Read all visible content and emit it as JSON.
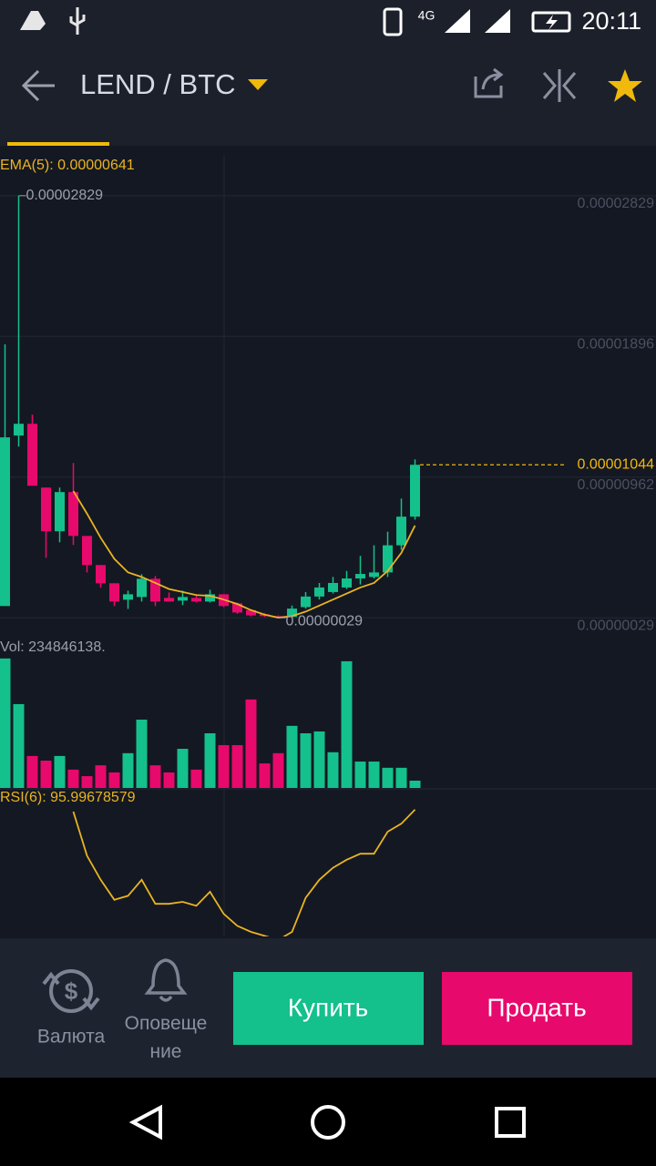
{
  "status_bar": {
    "network": "4G",
    "time": "20:11"
  },
  "header": {
    "title": "LEND / BTC"
  },
  "chart_data": [
    {
      "type": "candlestick",
      "ema": {
        "name": "EMA(5): 0.00000641",
        "color": "#e9b422",
        "values": [
          null,
          null,
          null,
          null,
          null,
          8.7e-06,
          7.2e-06,
          5.6e-06,
          4.2e-06,
          3.3e-06,
          3e-06,
          2.6e-06,
          2.2e-06,
          2e-06,
          1.8e-06,
          1.75e-06,
          1.5e-06,
          1.2e-06,
          8e-07,
          5e-07,
          3e-07,
          4e-07,
          7e-07,
          1.1e-06,
          1.5e-06,
          1.9e-06,
          2.3e-06,
          2.6e-06,
          3.4e-06,
          4.6e-06,
          6.41e-06
        ]
      },
      "open": [
        1.07e-06,
        1.238e-05,
        1.316e-05,
        8.93e-06,
        6.03e-06,
        8.63e-06,
        5.72e-06,
        3.79e-06,
        2.58e-06,
        1.49e-06,
        1.67e-06,
        2.88e-06,
        1.61e-06,
        1.43e-06,
        1.61e-06,
        1.37e-06,
        1.85e-06,
        1.25e-06,
        8e-07,
        5.2e-07,
        4e-07,
        3.5e-07,
        1e-06,
        1.7e-06,
        2e-06,
        2.3e-06,
        2.9e-06,
        3e-06,
        3.3e-06,
        5.1e-06,
        7e-06
      ],
      "high": [
        1.843e-05,
        2.829e-05,
        1.377e-05,
        8.93e-06,
        8.93e-06,
        1.056e-05,
        5.72e-06,
        3.79e-06,
        2.58e-06,
        2.09e-06,
        3.18e-06,
        3.06e-06,
        1.97e-06,
        2.09e-06,
        1.85e-06,
        2.15e-06,
        1.85e-06,
        1.3e-06,
        8.5e-07,
        6e-07,
        4.5e-07,
        1.1e-06,
        2e-06,
        2.6e-06,
        3e-06,
        3.4e-06,
        4.4e-06,
        5.1e-06,
        6e-06,
        8.2e-06,
        1.08e-05
      ],
      "low": [
        1.07e-06,
        1.165e-05,
        9.05e-06,
        4.27e-06,
        5.3e-06,
        5.12e-06,
        3.3e-06,
        2.28e-06,
        1.07e-06,
        8.8e-07,
        1.37e-06,
        1.07e-06,
        1.37e-06,
        1.13e-06,
        1.3e-06,
        1.3e-06,
        1e-06,
        5.5e-07,
        3.8e-07,
        3.5e-07,
        2.9e-07,
        3e-07,
        9e-07,
        1.5e-06,
        1.9e-06,
        2.2e-06,
        2.5e-06,
        2.9e-06,
        3e-06,
        4.8e-06,
        6.8e-06
      ],
      "close": [
        1.226e-05,
        1.316e-05,
        9.05e-06,
        6.03e-06,
        8.63e-06,
        5.72e-06,
        3.79e-06,
        2.58e-06,
        1.37e-06,
        1.85e-06,
        2.88e-06,
        1.37e-06,
        1.37e-06,
        1.67e-06,
        1.37e-06,
        1.85e-06,
        1.07e-06,
        6.4e-07,
        4.5e-07,
        4e-07,
        3.3e-07,
        9e-07,
        1.7e-06,
        2.3e-06,
        2.6e-06,
        2.9e-06,
        3.2e-06,
        3.3e-06,
        5.1e-06,
        7e-06,
        1.044e-05
      ],
      "up_color": "#14c08c",
      "down_color": "#e8096c",
      "ylim": [
        0,
        3.1e-05
      ],
      "yticks": [
        {
          "value": 2.829e-05,
          "label": "0.00002829"
        },
        {
          "value": 1.896e-05,
          "label": "0.00001896"
        },
        {
          "value": 9.62e-06,
          "label": "0.00000962"
        },
        {
          "value": 2.9e-07,
          "label": "0.00000029"
        }
      ],
      "grid": true,
      "max_label": {
        "value": 2.829e-05,
        "label": "0.00002829"
      },
      "min_label": {
        "value": 2.9e-07,
        "label": "0.00000029"
      },
      "last_price": {
        "value": 1.044e-05,
        "label": "0.00001044"
      }
    },
    {
      "type": "bar",
      "title": "Vol: 234846138.",
      "values": [
        4170000000,
        2700000000,
        1030000000,
        880000000,
        1030000000,
        590000000,
        380000000,
        730000000,
        500000000,
        1120000000,
        2200000000,
        730000000,
        500000000,
        1260000000,
        590000000,
        1760000000,
        1380000000,
        1380000000,
        2850000000,
        790000000,
        1120000000,
        2000000000,
        1760000000,
        1820000000,
        1150000000,
        4080000000,
        850000000,
        850000000,
        650000000,
        650000000,
        234846138
      ],
      "ylim": [
        0,
        4400000000
      ]
    },
    {
      "type": "line",
      "title": "RSI(6): 95.99678579",
      "color": "#e9b422",
      "values": [
        null,
        null,
        null,
        null,
        null,
        95,
        73,
        61,
        51,
        53,
        61,
        49,
        49,
        50,
        48,
        55,
        44,
        38,
        35,
        33,
        31,
        35,
        52,
        61,
        67,
        71,
        74,
        74,
        85,
        89,
        95.99678579
      ],
      "ylim": [
        0,
        100
      ]
    }
  ],
  "bottom_bar": {
    "currency": "Валюта",
    "alerts": "Оповещение",
    "buy": "Купить",
    "sell": "Продать"
  }
}
